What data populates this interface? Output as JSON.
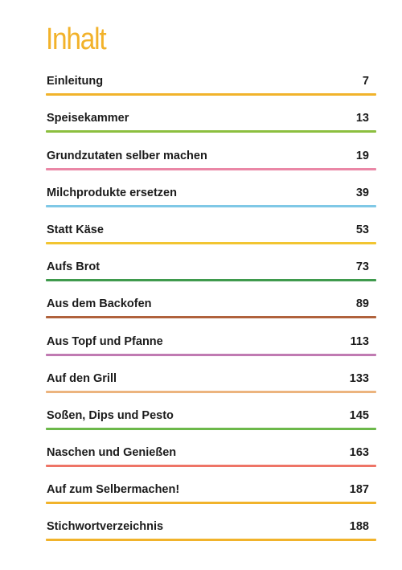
{
  "title": "Inhalt",
  "colors": {
    "title": "#f2b22a"
  },
  "entries": [
    {
      "label": "Einleitung",
      "page": "7",
      "color": "#f1b32b"
    },
    {
      "label": "Speisekammer",
      "page": "13",
      "color": "#8cbf3f"
    },
    {
      "label": "Grundzutaten selber machen",
      "page": "19",
      "color": "#ea87a6"
    },
    {
      "label": "Milchprodukte ersetzen",
      "page": "39",
      "color": "#7fc8e6"
    },
    {
      "label": "Statt Käse",
      "page": "53",
      "color": "#f2c531"
    },
    {
      "label": "Aufs Brot",
      "page": "73",
      "color": "#3f9a4d"
    },
    {
      "label": "Aus dem Backofen",
      "page": "89",
      "color": "#b0623c"
    },
    {
      "label": "Aus Topf und Pfanne",
      "page": "113",
      "color": "#c07ab2"
    },
    {
      "label": "Auf den Grill",
      "page": "133",
      "color": "#ecb47e"
    },
    {
      "label": "Soßen, Dips und Pesto",
      "page": "145",
      "color": "#6cb84a"
    },
    {
      "label": "Naschen und Genießen",
      "page": "163",
      "color": "#ee7466"
    },
    {
      "label": "Auf zum Selbermachen!",
      "page": "187",
      "color": "#f1b32b"
    },
    {
      "label": "Stichwortverzeichnis",
      "page": "188",
      "color": "#f1b32b"
    }
  ]
}
